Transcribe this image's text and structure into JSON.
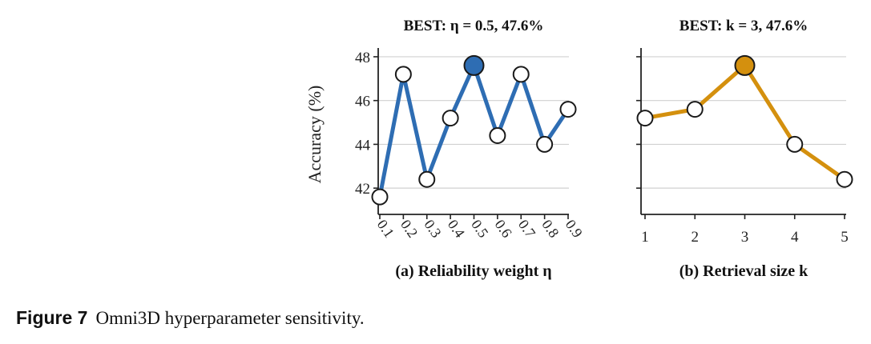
{
  "figure": {
    "label": "Figure 7",
    "caption": "Omni3D hyperparameter sensitivity.",
    "ylabel": "Accuracy (%)"
  },
  "chart_data": [
    {
      "type": "line",
      "title": "BEST: η = 0.5, 47.6%",
      "xlabel": "(a) Reliability weight η",
      "ylabel": "Accuracy (%)",
      "x": [
        0.1,
        0.2,
        0.3,
        0.4,
        0.5,
        0.6,
        0.7,
        0.8,
        0.9
      ],
      "tick_labels": [
        "0.1",
        "0.2",
        "0.3",
        "0.4",
        "0.5",
        "0.6",
        "0.7",
        "0.8",
        "0.9"
      ],
      "values": [
        41.6,
        47.2,
        42.4,
        45.2,
        47.6,
        44.4,
        47.2,
        44.0,
        45.6
      ],
      "best_index": 4,
      "yticks": [
        42,
        44,
        46,
        48
      ],
      "ylim": [
        40.8,
        48.4
      ],
      "color": "#2e6db3",
      "best_color": "#2e6db3",
      "grid": true
    },
    {
      "type": "line",
      "title": "BEST: k = 3, 47.6%",
      "xlabel": "(b) Retrieval size k",
      "x": [
        1,
        2,
        3,
        4,
        5
      ],
      "tick_labels": [
        "1",
        "2",
        "3",
        "4",
        "5"
      ],
      "values": [
        45.2,
        45.6,
        47.6,
        44.0,
        42.4
      ],
      "best_index": 2,
      "yticks": [
        42,
        44,
        46,
        48
      ],
      "ylim": [
        40.8,
        48.4
      ],
      "color": "#d4900e",
      "best_color": "#d4900e",
      "grid": true
    }
  ]
}
